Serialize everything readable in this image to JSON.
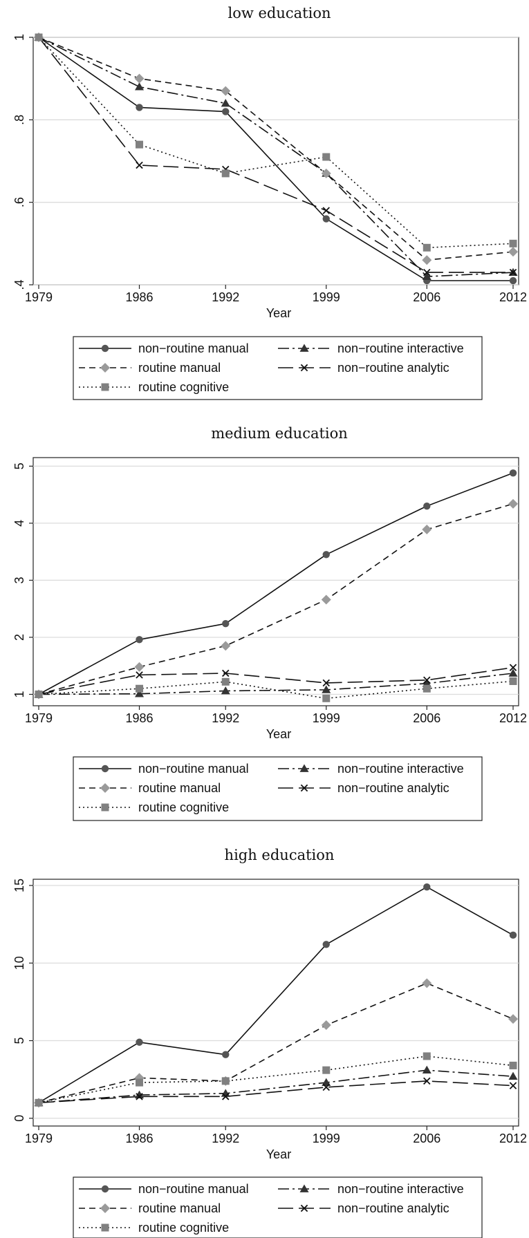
{
  "legend": {
    "nrm": "non−routine manual",
    "nri": "non−routine interactive",
    "rm": "routine manual",
    "nra": "non−routine analytic",
    "rc": "routine cognitive"
  },
  "styles": {
    "nrm": {
      "color": "#111111",
      "marker_color": "#555555",
      "marker": "circle",
      "dash": "none"
    },
    "nri": {
      "color": "#111111",
      "marker_color": "#333333",
      "marker": "triangle",
      "dash": "16 5 3 5"
    },
    "rm": {
      "color": "#111111",
      "marker_color": "#9a9a9a",
      "marker": "diamond",
      "dash": "9 6"
    },
    "nra": {
      "color": "#111111",
      "marker_color": "#111111",
      "marker": "x",
      "dash": "22 8"
    },
    "rc": {
      "color": "#111111",
      "marker_color": "#808080",
      "marker": "square",
      "dash": "2 4"
    }
  },
  "chart_data": [
    {
      "type": "line",
      "title": "low education",
      "xlabel": "Year",
      "ylabel": "",
      "x": [
        1979,
        1986,
        1992,
        1999,
        2006,
        2012
      ],
      "x_tick_labels": [
        "1979",
        "1986",
        "1992",
        "1999",
        "2006",
        "2012"
      ],
      "ylim": [
        0.4,
        1.0
      ],
      "y_ticks": [
        0.4,
        0.6,
        0.8,
        1.0
      ],
      "y_tick_labels": [
        ".4",
        ".6",
        ".8",
        "1"
      ],
      "grid": true,
      "legend_position": "bottom",
      "series": [
        {
          "key": "nrm",
          "name": "non−routine manual",
          "values": [
            1.0,
            0.83,
            0.82,
            0.56,
            0.41,
            0.41
          ]
        },
        {
          "key": "nri",
          "name": "non−routine interactive",
          "values": [
            1.0,
            0.88,
            0.84,
            0.67,
            0.42,
            0.43
          ]
        },
        {
          "key": "rm",
          "name": "routine manual",
          "values": [
            1.0,
            0.9,
            0.87,
            0.67,
            0.46,
            0.48
          ]
        },
        {
          "key": "nra",
          "name": "non−routine analytic",
          "values": [
            1.0,
            0.69,
            0.68,
            0.58,
            0.43,
            0.43
          ]
        },
        {
          "key": "rc",
          "name": "routine cognitive",
          "values": [
            1.0,
            0.74,
            0.67,
            0.71,
            0.49,
            0.5
          ]
        }
      ]
    },
    {
      "type": "line",
      "title": "medium education",
      "xlabel": "Year",
      "ylabel": "",
      "x": [
        1979,
        1986,
        1992,
        1999,
        2006,
        2012
      ],
      "x_tick_labels": [
        "1979",
        "1986",
        "1992",
        "1999",
        "2006",
        "2012"
      ],
      "ylim": [
        0.8,
        5.15
      ],
      "y_ticks": [
        1,
        2,
        3,
        4,
        5
      ],
      "y_tick_labels": [
        "1",
        "2",
        "3",
        "4",
        "5"
      ],
      "grid": true,
      "legend_position": "bottom",
      "series": [
        {
          "key": "nrm",
          "name": "non−routine manual",
          "values": [
            1.0,
            1.96,
            2.24,
            3.45,
            4.3,
            4.88
          ]
        },
        {
          "key": "nri",
          "name": "non−routine interactive",
          "values": [
            1.0,
            1.01,
            1.06,
            1.08,
            1.19,
            1.37
          ]
        },
        {
          "key": "rm",
          "name": "routine manual",
          "values": [
            1.0,
            1.48,
            1.85,
            2.66,
            3.89,
            4.34
          ]
        },
        {
          "key": "nra",
          "name": "non−routine analytic",
          "values": [
            1.0,
            1.34,
            1.37,
            1.2,
            1.25,
            1.47
          ]
        },
        {
          "key": "rc",
          "name": "routine cognitive",
          "values": [
            1.0,
            1.1,
            1.22,
            0.93,
            1.1,
            1.23
          ]
        }
      ]
    },
    {
      "type": "line",
      "title": "high education",
      "xlabel": "Year",
      "ylabel": "",
      "x": [
        1979,
        1986,
        1992,
        1999,
        2006,
        2012
      ],
      "x_tick_labels": [
        "1979",
        "1986",
        "1992",
        "1999",
        "2006",
        "2012"
      ],
      "ylim": [
        -0.5,
        15.4
      ],
      "y_ticks": [
        0,
        5,
        10,
        15
      ],
      "y_tick_labels": [
        "0",
        "5",
        "10",
        "15"
      ],
      "grid": true,
      "legend_position": "bottom",
      "series": [
        {
          "key": "nrm",
          "name": "non−routine manual",
          "values": [
            1.0,
            4.9,
            4.1,
            11.2,
            14.9,
            11.8
          ]
        },
        {
          "key": "nri",
          "name": "non−routine interactive",
          "values": [
            1.0,
            1.5,
            1.6,
            2.3,
            3.1,
            2.7
          ]
        },
        {
          "key": "rm",
          "name": "routine manual",
          "values": [
            1.0,
            2.6,
            2.4,
            6.0,
            8.7,
            6.4
          ]
        },
        {
          "key": "nra",
          "name": "non−routine analytic",
          "values": [
            1.0,
            1.4,
            1.4,
            2.0,
            2.4,
            2.1
          ]
        },
        {
          "key": "rc",
          "name": "routine cognitive",
          "values": [
            1.0,
            2.3,
            2.4,
            3.1,
            4.0,
            3.4
          ]
        }
      ]
    }
  ]
}
